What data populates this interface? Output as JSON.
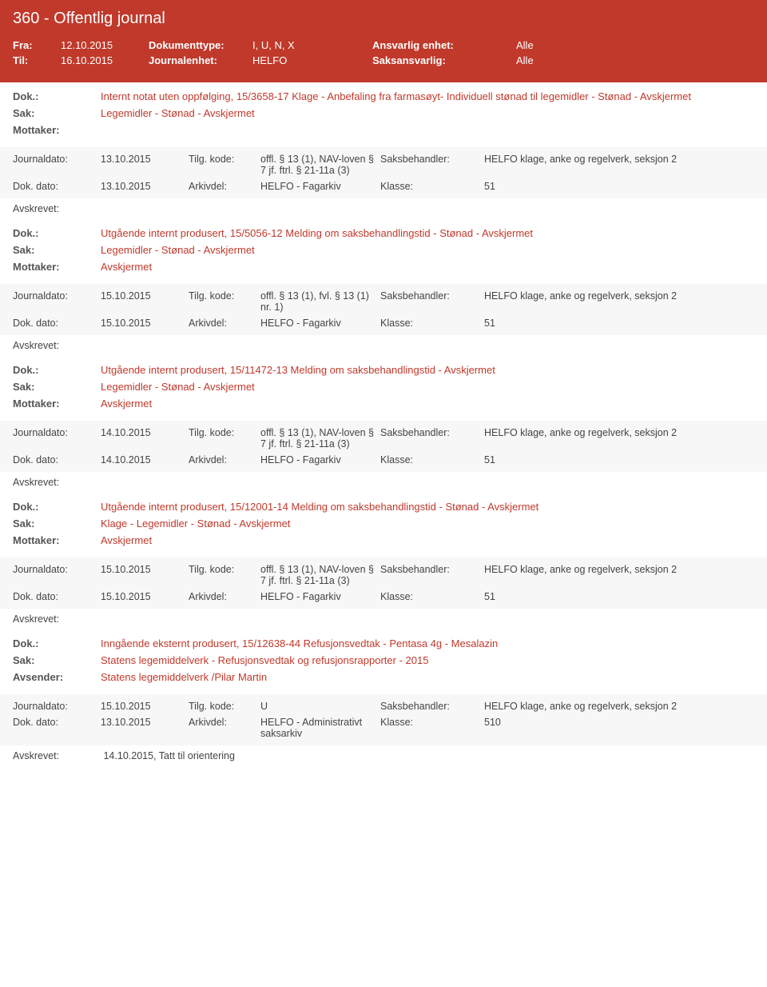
{
  "header": {
    "title": "360 - Offentlig journal",
    "fra_label": "Fra:",
    "fra_val": "12.10.2015",
    "til_label": "Til:",
    "til_val": "16.10.2015",
    "doktype_label": "Dokumenttype:",
    "doktype_val": "I, U, N, X",
    "journalenhet_label": "Journalenhet:",
    "journalenhet_val": "HELFO",
    "ans_enhet_label": "Ansvarlig enhet:",
    "ans_enhet_val": "Alle",
    "saksansvarlig_label": "Saksansvarlig:",
    "saksansvarlig_val": "Alle"
  },
  "labels": {
    "dok": "Dok.:",
    "sak": "Sak:",
    "mottaker": "Mottaker:",
    "avsender": "Avsender:",
    "journaldato": "Journaldato:",
    "tilg": "Tilg. kode:",
    "saksbeh": "Saksbehandler:",
    "dokdato": "Dok. dato:",
    "arkivdel": "Arkivdel:",
    "klasse": "Klasse:",
    "avskrevet": "Avskrevet:"
  },
  "entries": [
    {
      "dok": "Internt notat uten oppfølging, 15/3658-17 Klage - Anbefaling fra farmasøyt- Individuell stønad til legemidler - Stønad - Avskjermet",
      "sak": "Legemidler - Stønad - Avskjermet",
      "mottaker": "",
      "journaldato": "13.10.2015",
      "tilg": "offl. § 13 (1), NAV-loven § 7 jf. ftrl. § 21-11a (3)",
      "saksbeh": "HELFO klage, anke og regelverk, seksjon 2",
      "dokdato": "13.10.2015",
      "arkivdel": "HELFO - Fagarkiv",
      "klasse": "51",
      "avskrevet": ""
    },
    {
      "dok": "Utgående internt produsert, 15/5056-12 Melding om saksbehandlingstid - Stønad - Avskjermet",
      "sak": "Legemidler - Stønad - Avskjermet",
      "mottaker": "Avskjermet",
      "journaldato": "15.10.2015",
      "tilg": "offl. § 13 (1), fvl. § 13 (1) nr. 1)",
      "saksbeh": "HELFO klage, anke og regelverk, seksjon 2",
      "dokdato": "15.10.2015",
      "arkivdel": "HELFO - Fagarkiv",
      "klasse": "51",
      "avskrevet": ""
    },
    {
      "dok": "Utgående internt produsert, 15/11472-13 Melding om saksbehandlingstid - Avskjermet",
      "sak": "Legemidler - Stønad - Avskjermet",
      "mottaker": "Avskjermet",
      "journaldato": "14.10.2015",
      "tilg": "offl. § 13 (1), NAV-loven § 7 jf. ftrl. § 21-11a (3)",
      "saksbeh": "HELFO klage, anke og regelverk, seksjon 2",
      "dokdato": "14.10.2015",
      "arkivdel": "HELFO - Fagarkiv",
      "klasse": "51",
      "avskrevet": ""
    },
    {
      "dok": "Utgående internt produsert, 15/12001-14 Melding om saksbehandlingstid - Stønad - Avskjermet",
      "sak": "Klage - Legemidler - Stønad - Avskjermet",
      "mottaker": "Avskjermet",
      "journaldato": "15.10.2015",
      "tilg": "offl. § 13 (1), NAV-loven § 7 jf. ftrl. § 21-11a (3)",
      "saksbeh": "HELFO klage, anke og regelverk, seksjon 2",
      "dokdato": "15.10.2015",
      "arkivdel": "HELFO - Fagarkiv",
      "klasse": "51",
      "avskrevet": ""
    },
    {
      "dok": "Inngående eksternt produsert, 15/12638-44 Refusjonsvedtak - Pentasa 4g - Mesalazin",
      "sak": "Statens legemiddelverk - Refusjonsvedtak og refusjonsrapporter - 2015",
      "avsender": "Statens legemiddelverk /Pilar Martin",
      "journaldato": "15.10.2015",
      "tilg": "U",
      "saksbeh": "HELFO klage, anke og regelverk, seksjon 2",
      "dokdato": "13.10.2015",
      "arkivdel": "HELFO - Administrativt saksarkiv",
      "klasse": "510",
      "avskrevet": "14.10.2015, Tatt til orientering"
    }
  ]
}
